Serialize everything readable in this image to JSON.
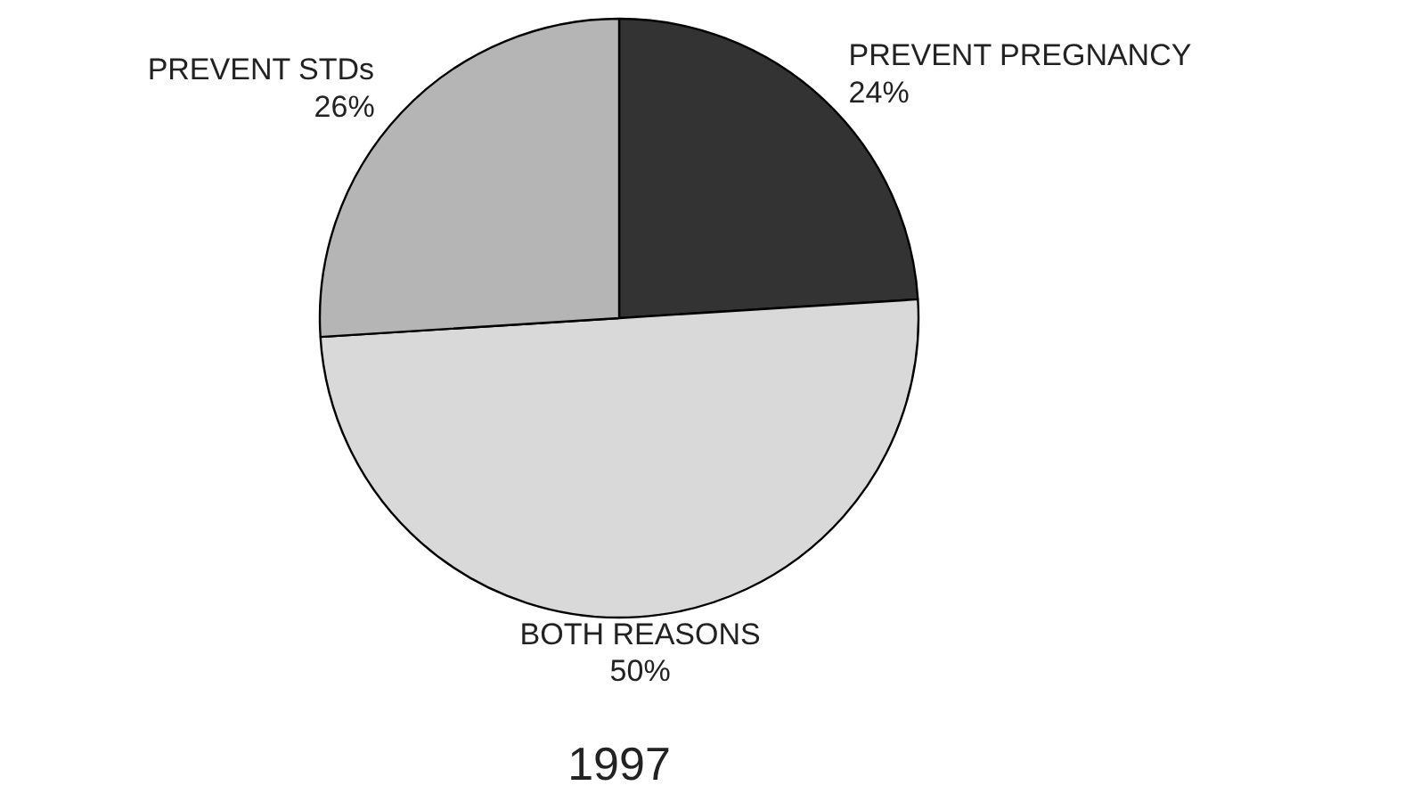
{
  "chart_data": {
    "type": "pie",
    "title": "1997",
    "categories": [
      "PREVENT PREGNANCY",
      "BOTH REASONS",
      "PREVENT STDs"
    ],
    "values": [
      24,
      50,
      26
    ],
    "colors": [
      "#333333",
      "#d9d9d9",
      "#b5b5b5"
    ],
    "value_labels": [
      "24%",
      "50%",
      "26%"
    ]
  }
}
